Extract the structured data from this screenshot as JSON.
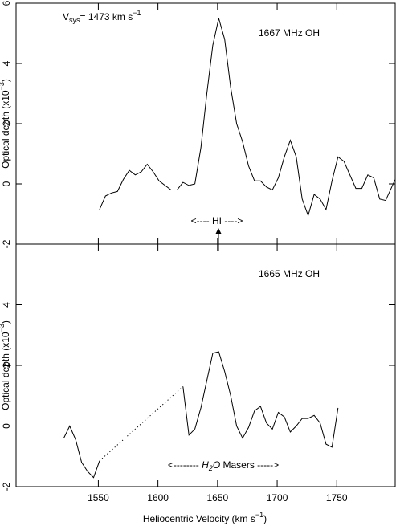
{
  "chart_data": [
    {
      "type": "line",
      "annotation": "1667 MHz OH",
      "note": {
        "parts": [
          "V",
          "sys",
          "= 1473 km s",
          "−1"
        ]
      },
      "hi_label": "<---- HI ---->",
      "ylabel": {
        "parts": [
          "Optical depth (x10",
          "−3",
          ")"
        ]
      },
      "xlim": [
        1481,
        1799
      ],
      "xticks": [
        1550,
        1600,
        1650,
        1700,
        1750
      ],
      "ylim": [
        -2,
        6
      ],
      "yticks": [
        -2,
        0,
        2,
        4,
        6
      ],
      "series": [
        {
          "color": "#000000",
          "style": "solid",
          "x": [
            1551,
            1556,
            1561,
            1566,
            1571,
            1576,
            1581,
            1586,
            1591,
            1596,
            1601,
            1606,
            1611,
            1616,
            1621,
            1626,
            1631,
            1636,
            1641,
            1646,
            1651,
            1656,
            1661,
            1666,
            1671,
            1676,
            1681,
            1686,
            1691,
            1696,
            1701,
            1706,
            1711,
            1716,
            1721,
            1726,
            1731,
            1736,
            1741,
            1746,
            1751,
            1756,
            1761,
            1766,
            1771,
            1776,
            1781,
            1786,
            1791,
            1799
          ],
          "values": [
            -0.85,
            -0.4,
            -0.3,
            -0.25,
            0.15,
            0.45,
            0.3,
            0.4,
            0.65,
            0.4,
            0.1,
            -0.05,
            -0.2,
            -0.2,
            0.05,
            -0.05,
            0.0,
            1.2,
            3.0,
            4.6,
            5.5,
            4.8,
            3.2,
            2.0,
            1.4,
            0.6,
            0.1,
            0.1,
            -0.1,
            -0.2,
            0.2,
            0.9,
            1.45,
            0.9,
            -0.5,
            -1.05,
            -0.35,
            -0.5,
            -0.85,
            0.1,
            0.9,
            0.75,
            0.3,
            -0.15,
            -0.15,
            0.3,
            0.2,
            -0.5,
            -0.55,
            0.15
          ]
        }
      ]
    },
    {
      "type": "line",
      "annotation": "1665 MHz OH",
      "maser_label": {
        "parts": [
          "<-------- ",
          "H",
          "2",
          "O",
          " Masers ----->"
        ]
      },
      "ylabel": {
        "parts": [
          "Optical depth (x10",
          "−3",
          ")"
        ]
      },
      "xlabel": {
        "parts": [
          "Heliocentric Velocity (km s",
          "−1",
          ")"
        ]
      },
      "xlim": [
        1481,
        1799
      ],
      "xticks": [
        1550,
        1600,
        1650,
        1700,
        1750
      ],
      "ylim": [
        -2,
        6
      ],
      "yticks": [
        -2,
        0,
        2,
        4
      ],
      "series": [
        {
          "color": "#000000",
          "style": "solid",
          "x": [
            1521,
            1526,
            1531,
            1536,
            1541,
            1546,
            1551,
            1586,
            1621,
            1626,
            1631,
            1636,
            1641,
            1646,
            1651,
            1656,
            1661,
            1666,
            1671,
            1676,
            1681,
            1686,
            1691,
            1696,
            1701,
            1706,
            1711,
            1716,
            1721,
            1726,
            1731,
            1736,
            1741,
            1746,
            1751
          ],
          "values": [
            -0.4,
            0.0,
            -0.45,
            -1.2,
            -1.5,
            -1.7,
            -1.15,
            null,
            1.3,
            -0.3,
            -0.1,
            0.6,
            1.5,
            2.4,
            2.45,
            1.8,
            1.0,
            0.0,
            -0.4,
            -0.05,
            0.5,
            0.65,
            0.1,
            -0.1,
            0.45,
            0.3,
            -0.2,
            0.0,
            0.25,
            0.25,
            0.35,
            0.1,
            -0.6,
            -0.7,
            0.6
          ]
        },
        {
          "color": "#000000",
          "style": "dotted",
          "x": [
            1551,
            1621
          ],
          "values": [
            -1.15,
            1.3
          ]
        }
      ]
    }
  ]
}
